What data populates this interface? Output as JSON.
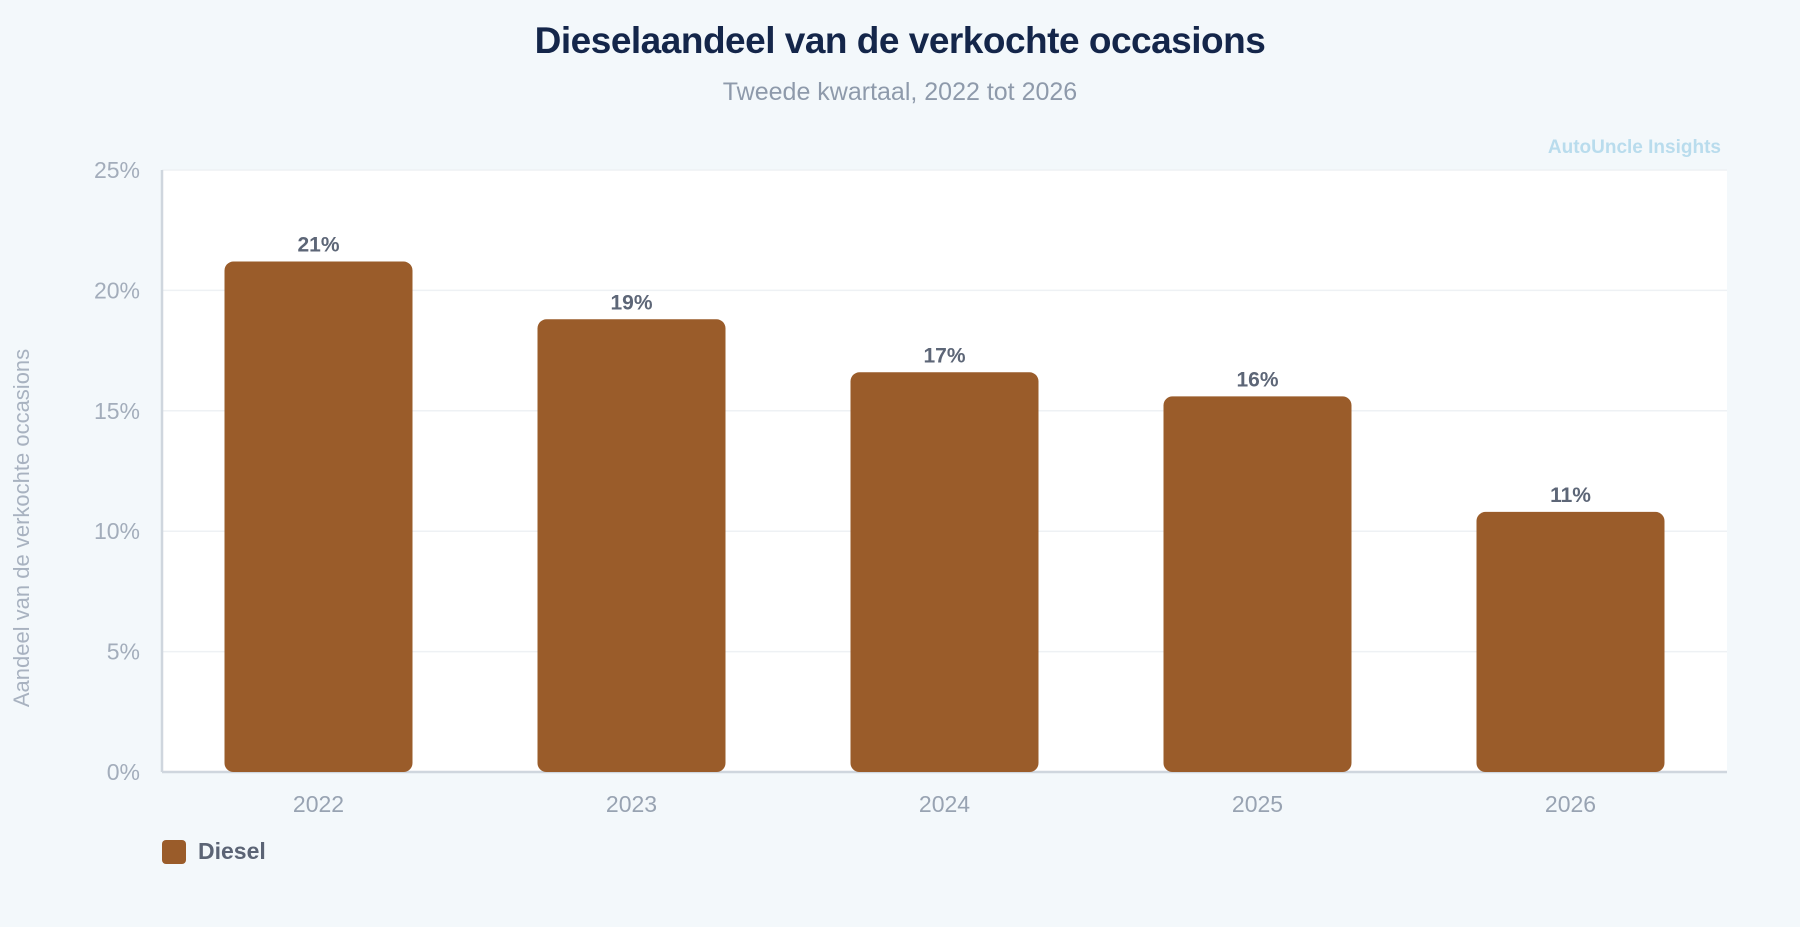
{
  "chart_data": {
    "type": "bar",
    "title": "Dieselaandeel van de verkochte occasions",
    "subtitle": "Tweede kwartaal, 2022 tot 2026",
    "watermark": "AutoUncle Insights",
    "ylabel": "Aandeel van de verkochte occasions",
    "xlabel": "",
    "categories": [
      "2022",
      "2023",
      "2024",
      "2025",
      "2026"
    ],
    "series": [
      {
        "name": "Diesel",
        "values": [
          21.2,
          18.8,
          16.6,
          15.6,
          10.8
        ],
        "data_labels": [
          "21%",
          "19%",
          "17%",
          "16%",
          "11%"
        ],
        "color": "#9a5c2a"
      }
    ],
    "ylim": [
      0,
      25
    ],
    "yticks": [
      0,
      5,
      10,
      15,
      20,
      25
    ],
    "ytick_labels": [
      "0%",
      "5%",
      "10%",
      "15%",
      "20%",
      "25%"
    ],
    "grid": true,
    "legend_position": "bottom-left"
  }
}
